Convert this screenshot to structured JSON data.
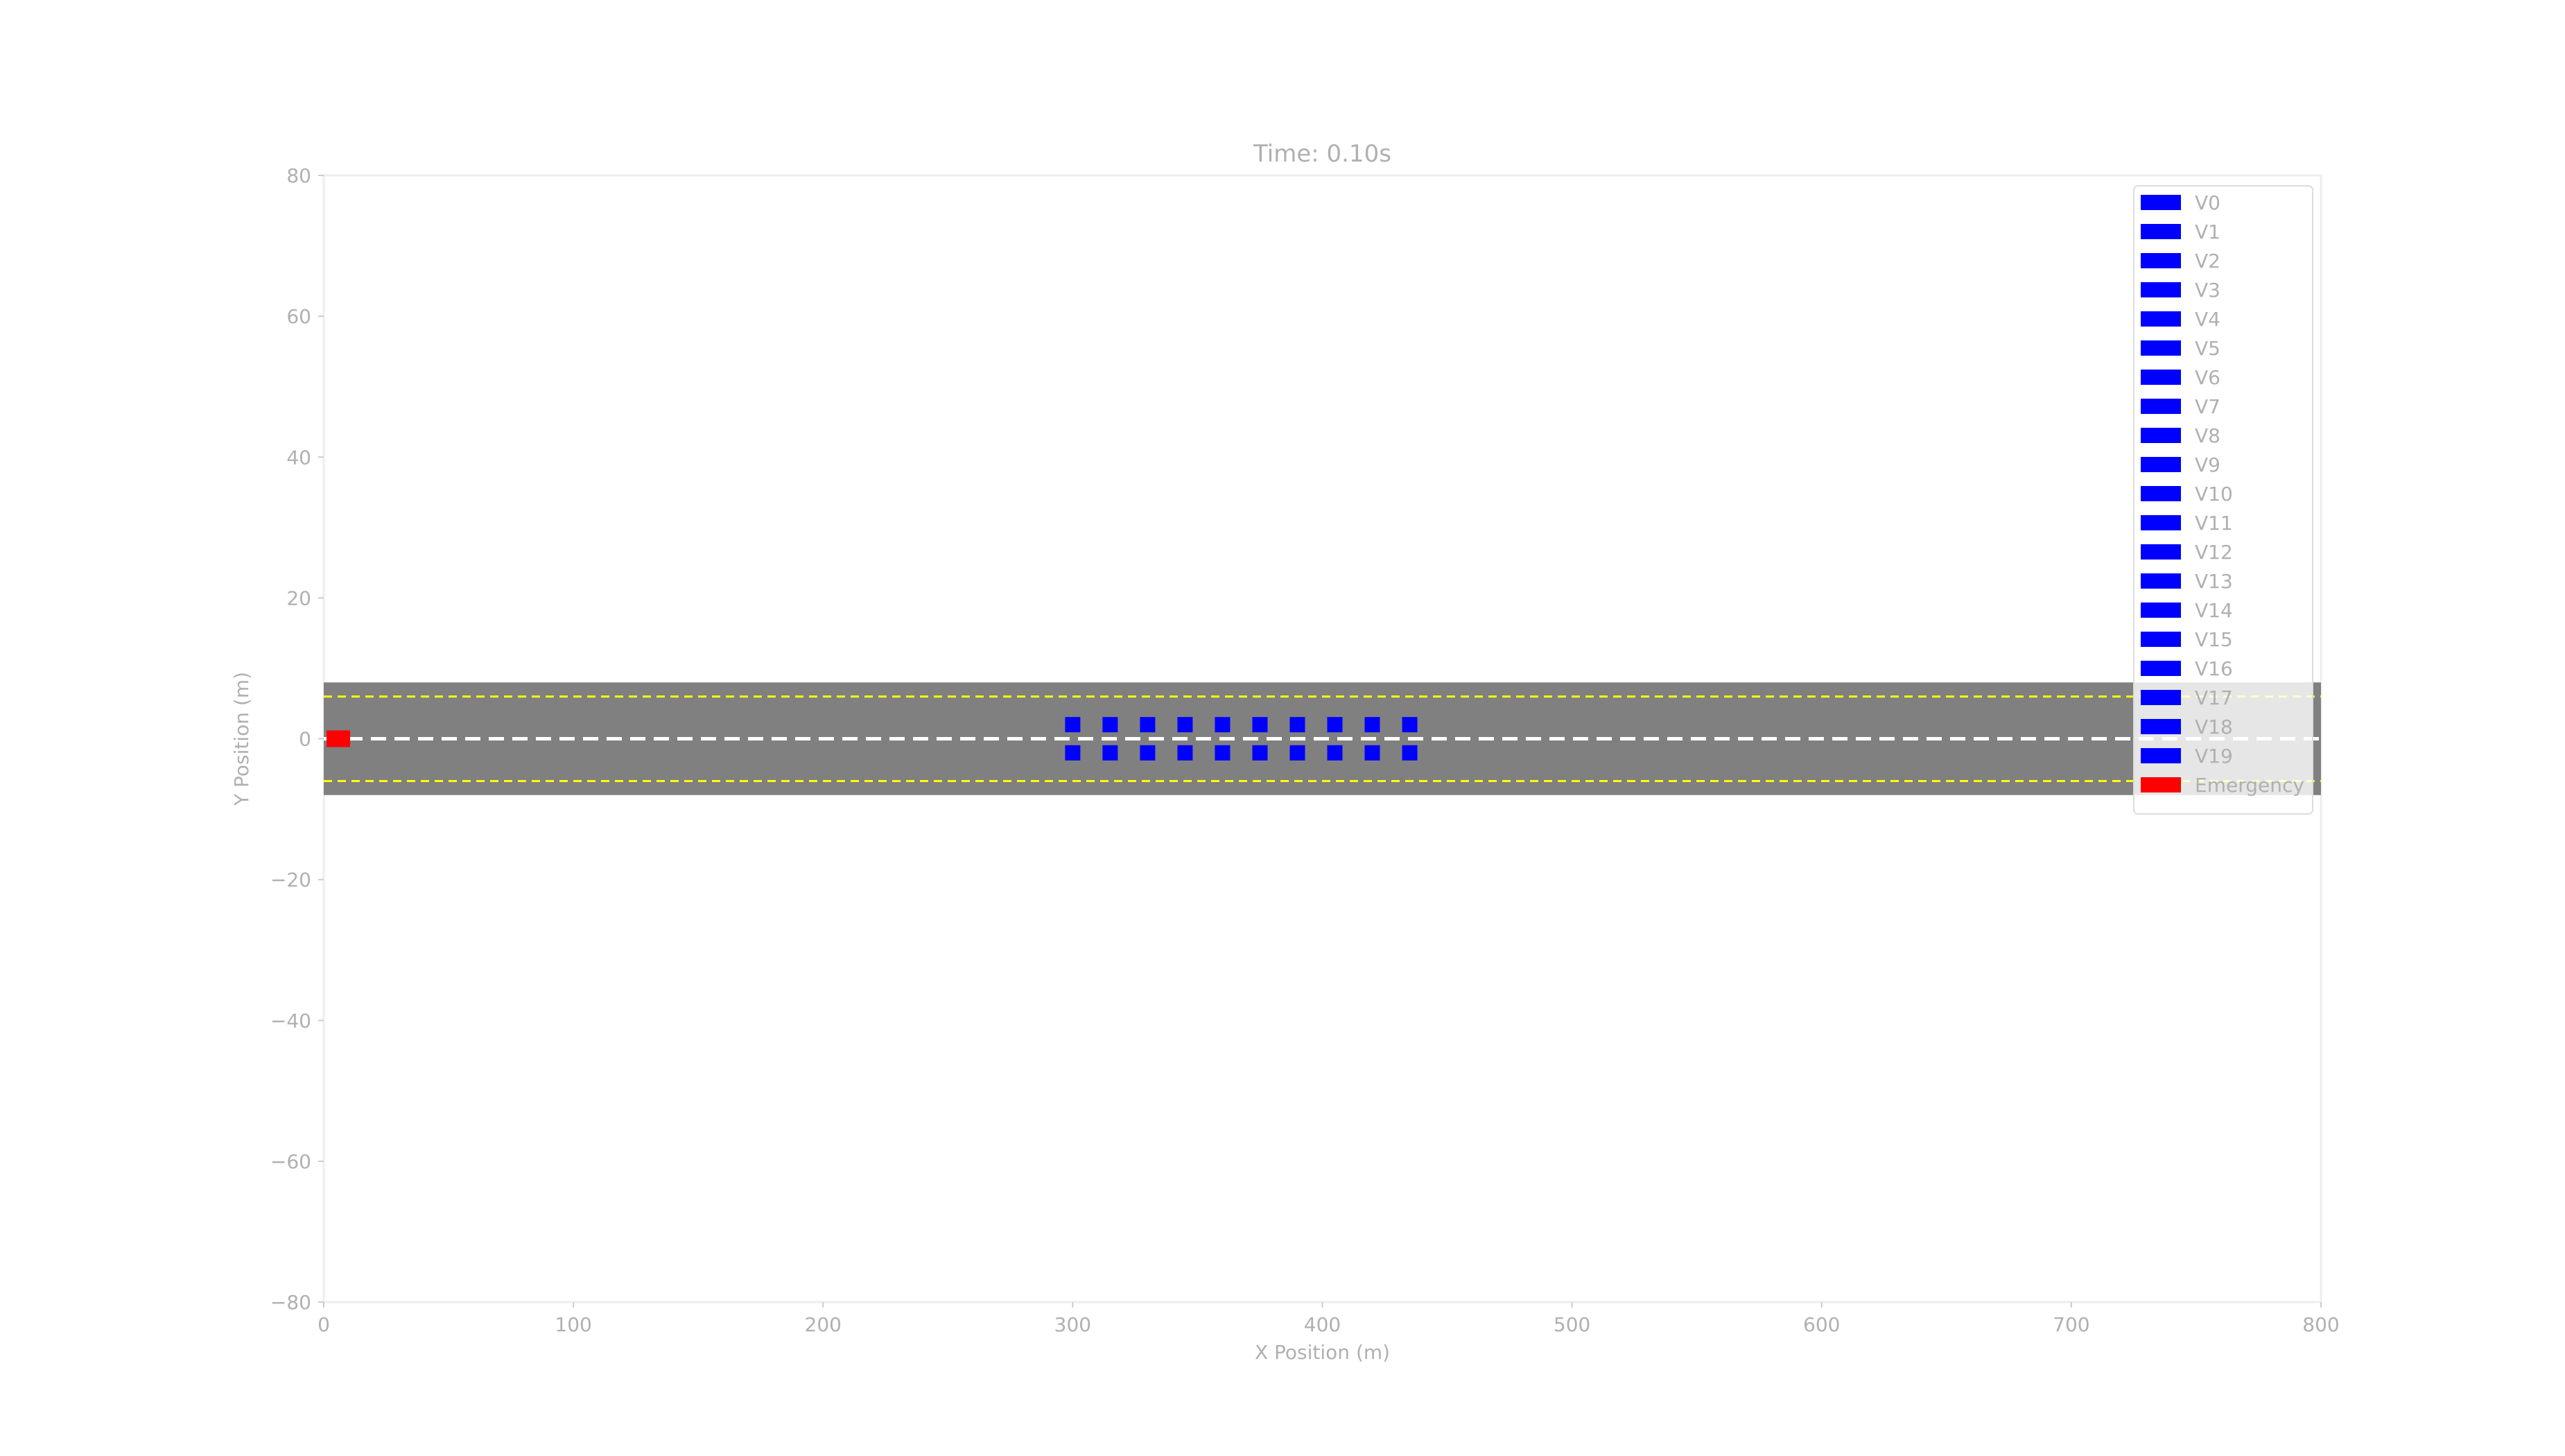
{
  "chart_data": {
    "type": "scatter",
    "title": "Time: 0.10s",
    "xlabel": "X Position (m)",
    "ylabel": "Y Position (m)",
    "xlim": [
      0,
      800
    ],
    "ylim": [
      -80,
      80
    ],
    "xticks": [
      0,
      100,
      200,
      300,
      400,
      500,
      600,
      700,
      800
    ],
    "yticks": [
      -80,
      -60,
      -40,
      -20,
      0,
      20,
      40,
      60,
      80
    ],
    "xtick_labels": [
      "0",
      "100",
      "200",
      "300",
      "400",
      "500",
      "600",
      "700",
      "800"
    ],
    "ytick_labels": [
      "−80",
      "−60",
      "−40",
      "−20",
      "0",
      "20",
      "40",
      "60",
      "80"
    ],
    "grid": false,
    "legend_position": "top-right",
    "road": {
      "y_range": [
        -8,
        8
      ],
      "color": "#808080",
      "center_line_y": 0,
      "center_line_color": "#ffffff",
      "lane_edge_y": [
        -6,
        6
      ],
      "lane_edge_color": "#ffff00"
    },
    "series": [
      {
        "name": "V0",
        "color": "#0000ff",
        "x": 300,
        "y": 2
      },
      {
        "name": "V1",
        "color": "#0000ff",
        "x": 300,
        "y": -2
      },
      {
        "name": "V2",
        "color": "#0000ff",
        "x": 315,
        "y": 2
      },
      {
        "name": "V3",
        "color": "#0000ff",
        "x": 315,
        "y": -2
      },
      {
        "name": "V4",
        "color": "#0000ff",
        "x": 330,
        "y": 2
      },
      {
        "name": "V5",
        "color": "#0000ff",
        "x": 330,
        "y": -2
      },
      {
        "name": "V6",
        "color": "#0000ff",
        "x": 345,
        "y": 2
      },
      {
        "name": "V7",
        "color": "#0000ff",
        "x": 345,
        "y": -2
      },
      {
        "name": "V8",
        "color": "#0000ff",
        "x": 360,
        "y": 2
      },
      {
        "name": "V9",
        "color": "#0000ff",
        "x": 360,
        "y": -2
      },
      {
        "name": "V10",
        "color": "#0000ff",
        "x": 375,
        "y": 2
      },
      {
        "name": "V11",
        "color": "#0000ff",
        "x": 375,
        "y": -2
      },
      {
        "name": "V12",
        "color": "#0000ff",
        "x": 390,
        "y": 2
      },
      {
        "name": "V13",
        "color": "#0000ff",
        "x": 390,
        "y": -2
      },
      {
        "name": "V14",
        "color": "#0000ff",
        "x": 405,
        "y": 2
      },
      {
        "name": "V15",
        "color": "#0000ff",
        "x": 405,
        "y": -2
      },
      {
        "name": "V16",
        "color": "#0000ff",
        "x": 420,
        "y": 2
      },
      {
        "name": "V17",
        "color": "#0000ff",
        "x": 420,
        "y": -2
      },
      {
        "name": "V18",
        "color": "#0000ff",
        "x": 435,
        "y": 2
      },
      {
        "name": "V19",
        "color": "#0000ff",
        "x": 435,
        "y": -2
      },
      {
        "name": "Emergency",
        "color": "#ff0000",
        "x": 5,
        "y": 0
      }
    ]
  }
}
